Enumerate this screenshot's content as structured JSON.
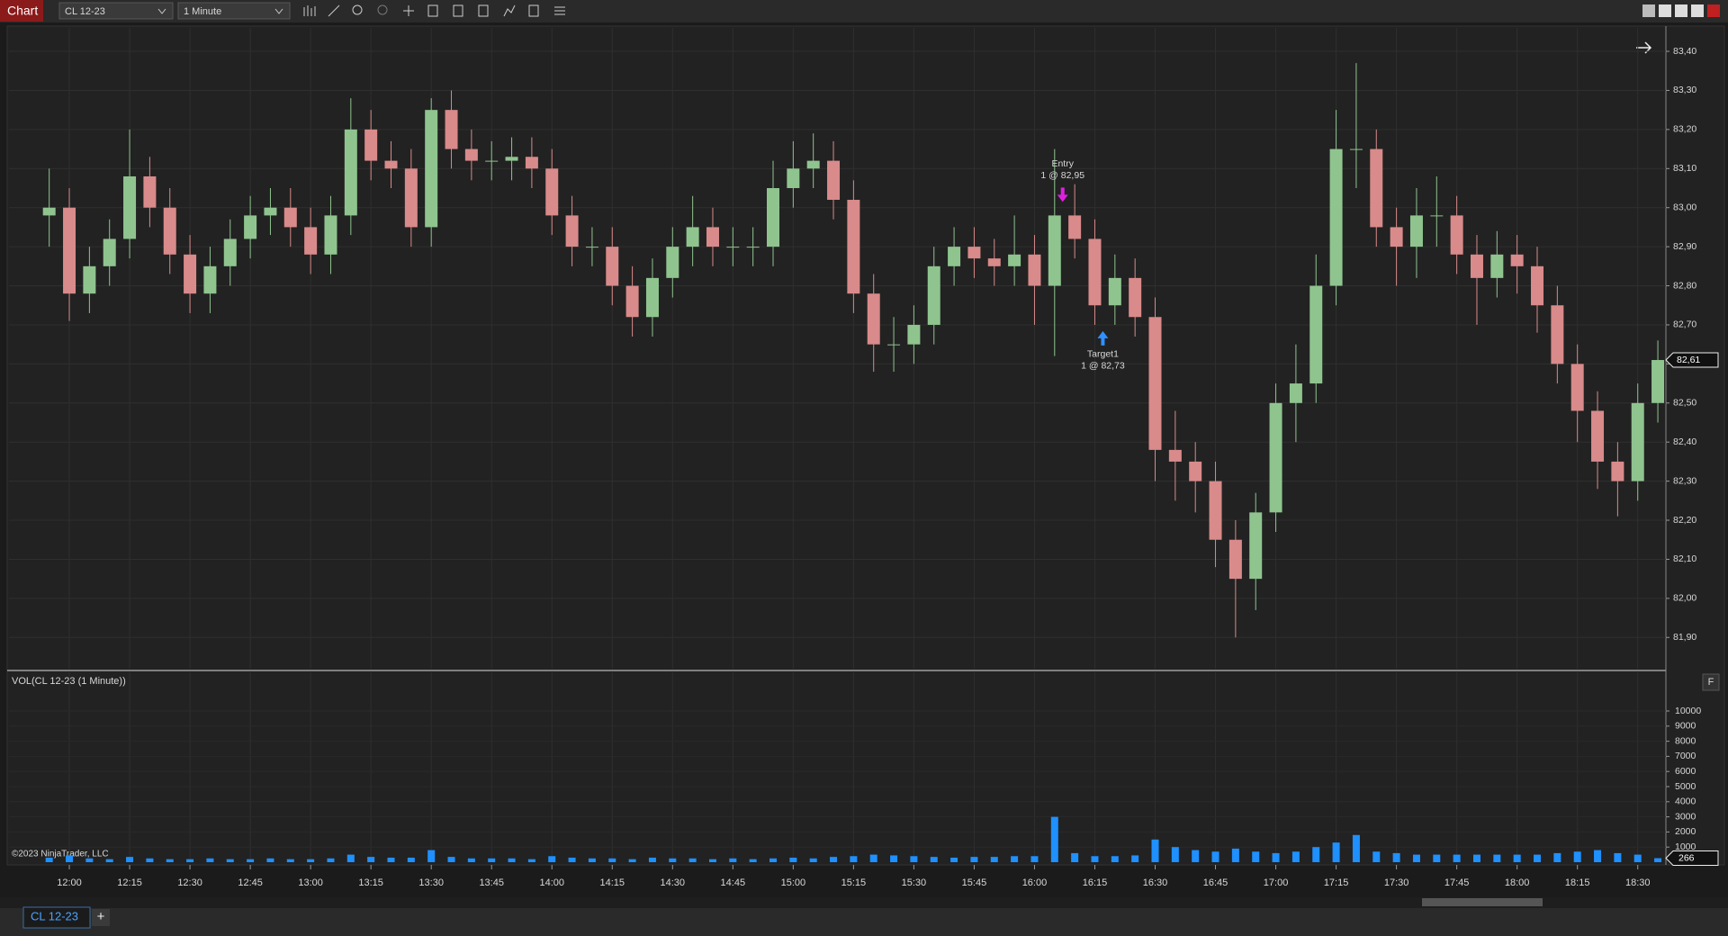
{
  "toolbar": {
    "title": "Chart",
    "instrument": "CL 12-23",
    "interval": "1 Minute"
  },
  "tabs": {
    "active": "CL 12-23",
    "add": "+"
  },
  "chart_data": {
    "type": "candlestick",
    "x": [
      -5,
      0,
      5,
      10,
      15,
      20,
      25,
      30,
      35,
      40,
      45,
      50,
      55,
      60,
      65,
      70,
      75,
      80,
      85,
      90,
      95,
      100,
      105,
      110,
      115,
      120,
      125,
      130,
      135,
      140,
      145,
      150,
      155,
      160,
      165,
      170,
      175,
      180,
      185,
      190,
      195,
      200,
      205,
      210,
      215,
      220,
      225,
      230,
      235,
      240,
      245,
      250,
      255,
      260,
      265,
      270,
      275,
      280,
      285,
      290,
      295,
      300,
      305,
      310,
      315,
      320,
      325,
      330,
      335,
      340,
      345,
      350,
      355,
      360,
      365,
      370,
      375,
      380,
      385,
      390,
      395
    ],
    "open": [
      82.98,
      83.0,
      82.78,
      82.85,
      82.92,
      83.08,
      83.0,
      82.88,
      82.78,
      82.85,
      82.92,
      82.98,
      83.0,
      82.95,
      82.88,
      82.98,
      83.2,
      83.12,
      83.1,
      82.95,
      83.25,
      83.15,
      83.12,
      83.12,
      83.13,
      83.1,
      82.98,
      82.9,
      82.9,
      82.8,
      82.72,
      82.82,
      82.9,
      82.95,
      82.9,
      82.9,
      82.9,
      83.05,
      83.1,
      83.12,
      83.02,
      82.78,
      82.65,
      82.65,
      82.7,
      82.85,
      82.9,
      82.87,
      82.85,
      82.88,
      82.8,
      82.98,
      82.92,
      82.75,
      82.82,
      82.72,
      82.38,
      82.35,
      82.3,
      82.15,
      82.05,
      82.22,
      82.5,
      82.55,
      82.8,
      83.15,
      83.15,
      82.95,
      82.9,
      82.98,
      82.98,
      82.88,
      82.82,
      82.88,
      82.85,
      82.75,
      82.6,
      82.48,
      82.35,
      82.3,
      82.5
    ],
    "high": [
      83.1,
      83.05,
      82.9,
      82.97,
      83.2,
      83.13,
      83.05,
      82.93,
      82.9,
      82.97,
      83.03,
      83.05,
      83.05,
      83.0,
      83.03,
      83.28,
      83.25,
      83.17,
      83.15,
      83.28,
      83.3,
      83.2,
      83.17,
      83.18,
      83.18,
      83.15,
      83.03,
      82.95,
      82.95,
      82.85,
      82.87,
      82.95,
      83.03,
      83.0,
      82.95,
      82.95,
      83.12,
      83.17,
      83.19,
      83.17,
      83.07,
      82.83,
      82.72,
      82.75,
      82.9,
      82.95,
      82.95,
      82.92,
      82.98,
      82.93,
      83.15,
      83.06,
      82.97,
      82.88,
      82.87,
      82.77,
      82.48,
      82.4,
      82.35,
      82.2,
      82.27,
      82.55,
      82.65,
      82.88,
      83.25,
      83.37,
      83.2,
      83.0,
      83.05,
      83.08,
      83.03,
      82.93,
      82.94,
      82.93,
      82.9,
      82.8,
      82.65,
      82.53,
      82.4,
      82.55,
      82.66
    ],
    "low": [
      82.9,
      82.71,
      82.73,
      82.8,
      82.87,
      82.95,
      82.83,
      82.73,
      82.73,
      82.8,
      82.87,
      82.93,
      82.9,
      82.83,
      82.83,
      82.93,
      83.07,
      83.05,
      82.9,
      82.9,
      83.1,
      83.07,
      83.07,
      83.07,
      83.05,
      82.93,
      82.85,
      82.85,
      82.75,
      82.67,
      82.67,
      82.77,
      82.85,
      82.85,
      82.85,
      82.85,
      82.85,
      83.0,
      83.05,
      82.97,
      82.73,
      82.58,
      82.58,
      82.6,
      82.65,
      82.8,
      82.82,
      82.8,
      82.8,
      82.7,
      82.62,
      82.87,
      82.7,
      82.7,
      82.67,
      82.3,
      82.25,
      82.22,
      82.08,
      81.9,
      81.97,
      82.17,
      82.4,
      82.5,
      82.75,
      83.05,
      82.9,
      82.8,
      82.82,
      82.9,
      82.83,
      82.7,
      82.77,
      82.78,
      82.68,
      82.55,
      82.4,
      82.28,
      82.21,
      82.25,
      82.45
    ],
    "close": [
      83.0,
      82.78,
      82.85,
      82.92,
      83.08,
      83.0,
      82.88,
      82.78,
      82.85,
      82.92,
      82.98,
      83.0,
      82.95,
      82.88,
      82.98,
      83.2,
      83.12,
      83.1,
      82.95,
      83.25,
      83.15,
      83.12,
      83.12,
      83.13,
      83.1,
      82.98,
      82.9,
      82.9,
      82.8,
      82.72,
      82.82,
      82.9,
      82.95,
      82.9,
      82.9,
      82.9,
      83.05,
      83.1,
      83.12,
      83.02,
      82.78,
      82.65,
      82.65,
      82.7,
      82.85,
      82.9,
      82.87,
      82.85,
      82.88,
      82.8,
      82.98,
      82.92,
      82.75,
      82.82,
      82.72,
      82.38,
      82.35,
      82.3,
      82.15,
      82.05,
      82.22,
      82.5,
      82.55,
      82.8,
      83.15,
      83.15,
      82.95,
      82.9,
      82.98,
      82.98,
      82.88,
      82.82,
      82.88,
      82.85,
      82.75,
      82.6,
      82.48,
      82.35,
      82.3,
      82.5,
      82.61
    ],
    "up_color": "#8fc48f",
    "down_color": "#d98a8a",
    "xlim": [
      -15,
      397
    ],
    "xticks": [
      {
        "value": 0,
        "label": "12:00"
      },
      {
        "value": 15,
        "label": "12:15"
      },
      {
        "value": 30,
        "label": "12:30"
      },
      {
        "value": 45,
        "label": "12:45"
      },
      {
        "value": 60,
        "label": "13:00"
      },
      {
        "value": 75,
        "label": "13:15"
      },
      {
        "value": 90,
        "label": "13:30"
      },
      {
        "value": 105,
        "label": "13:45"
      },
      {
        "value": 120,
        "label": "14:00"
      },
      {
        "value": 135,
        "label": "14:15"
      },
      {
        "value": 150,
        "label": "14:30"
      },
      {
        "value": 165,
        "label": "14:45"
      },
      {
        "value": 180,
        "label": "15:00"
      },
      {
        "value": 195,
        "label": "15:15"
      },
      {
        "value": 210,
        "label": "15:30"
      },
      {
        "value": 225,
        "label": "15:45"
      },
      {
        "value": 240,
        "label": "16:00"
      },
      {
        "value": 255,
        "label": "16:15"
      },
      {
        "value": 270,
        "label": "16:30"
      },
      {
        "value": 285,
        "label": "16:45"
      },
      {
        "value": 300,
        "label": "17:00"
      },
      {
        "value": 315,
        "label": "17:15"
      },
      {
        "value": 330,
        "label": "17:30"
      },
      {
        "value": 345,
        "label": "17:45"
      },
      {
        "value": 360,
        "label": "18:00"
      },
      {
        "value": 375,
        "label": "18:15"
      },
      {
        "value": 390,
        "label": "18:30"
      }
    ],
    "ylim": [
      81.82,
      83.46
    ],
    "yticks": [
      {
        "value": 81.9,
        "label": "81,90"
      },
      {
        "value": 82.0,
        "label": "82,00"
      },
      {
        "value": 82.1,
        "label": "82,10"
      },
      {
        "value": 82.2,
        "label": "82,20"
      },
      {
        "value": 82.3,
        "label": "82,30"
      },
      {
        "value": 82.4,
        "label": "82,40"
      },
      {
        "value": 82.5,
        "label": "82,50"
      },
      {
        "value": 82.6,
        "label": "82,60"
      },
      {
        "value": 82.7,
        "label": "82,70"
      },
      {
        "value": 82.8,
        "label": "82,80"
      },
      {
        "value": 82.9,
        "label": "82,90"
      },
      {
        "value": 83.0,
        "label": "83,00"
      },
      {
        "value": 83.1,
        "label": "83,10"
      },
      {
        "value": 83.2,
        "label": "83,20"
      },
      {
        "value": 83.3,
        "label": "83,30"
      },
      {
        "value": 83.4,
        "label": "83,40"
      }
    ],
    "grid": true,
    "last_price": {
      "value": 82.61,
      "label": "82,61"
    },
    "markers": [
      {
        "name": "Entry",
        "text": "1 @ 82,95",
        "x": 247,
        "price": 82.95,
        "direction": "down",
        "color": "#e020e0"
      },
      {
        "name": "Target1",
        "text": "1 @ 82,73",
        "x": 257,
        "price": 82.73,
        "direction": "up",
        "color": "#3090ff"
      }
    ],
    "volume": {
      "title": "VOL(CL 12-23 (1 Minute))",
      "color": "#1e90ff",
      "values": [
        300,
        450,
        250,
        200,
        350,
        250,
        200,
        200,
        250,
        200,
        200,
        250,
        200,
        200,
        250,
        500,
        350,
        300,
        300,
        800,
        350,
        250,
        250,
        250,
        200,
        400,
        300,
        250,
        250,
        200,
        300,
        250,
        250,
        200,
        250,
        200,
        250,
        300,
        250,
        350,
        400,
        500,
        450,
        400,
        350,
        300,
        350,
        350,
        400,
        400,
        3000,
        600,
        400,
        400,
        450,
        1500,
        1000,
        800,
        700,
        900,
        700,
        600,
        700,
        1000,
        1300,
        1800,
        700,
        600,
        500,
        500,
        500,
        500,
        500,
        500,
        500,
        600,
        700,
        800,
        600,
        500,
        266
      ],
      "ylim": [
        0,
        12560
      ],
      "yticks": [
        1000,
        2000,
        3000,
        4000,
        5000,
        6000,
        7000,
        8000,
        9000,
        10000
      ]
    },
    "copyright": "©2023 NinjaTrader, LLC",
    "button": "F"
  }
}
